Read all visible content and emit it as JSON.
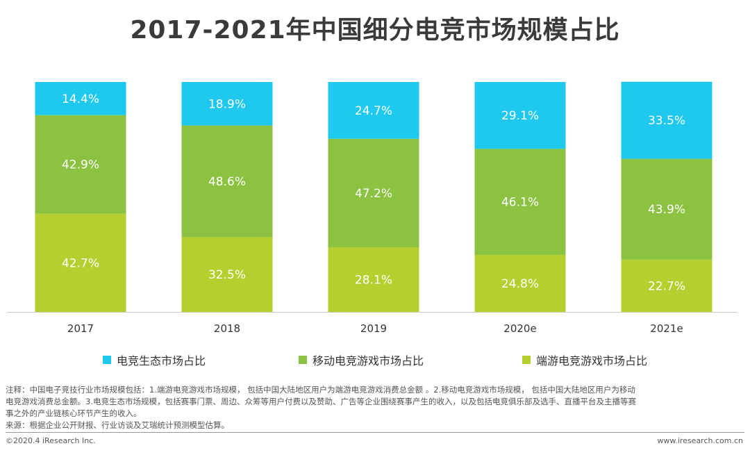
{
  "title": "2017-2021年中国细分电竞市场规模占比",
  "chart_data": {
    "type": "bar",
    "stacked": true,
    "categories": [
      "2017",
      "2018",
      "2019",
      "2020e",
      "2021e"
    ],
    "series": [
      {
        "name": "端游电竞游戏市场占比",
        "color": "#b5cf2f",
        "values": [
          42.7,
          32.5,
          28.1,
          24.8,
          22.7
        ],
        "labels": [
          "42.7%",
          "32.5%",
          "28.1%",
          "24.8%",
          "22.7%"
        ]
      },
      {
        "name": "移动电竞游戏市场占比",
        "color": "#8bc242",
        "values": [
          42.9,
          48.6,
          47.2,
          46.1,
          43.9
        ],
        "labels": [
          "42.9%",
          "48.6%",
          "47.2%",
          "46.1%",
          "43.9%"
        ]
      },
      {
        "name": "电竞生态市场占比",
        "color": "#1ec8ef",
        "values": [
          14.4,
          18.9,
          24.7,
          29.1,
          33.5
        ],
        "labels": [
          "14.4%",
          "18.9%",
          "24.7%",
          "29.1%",
          "33.5%"
        ]
      }
    ],
    "ylim": [
      0,
      100
    ],
    "grid": false,
    "legend_position": "bottom"
  },
  "legend": [
    {
      "label": "电竞生态市场占比",
      "color": "#1ec8ef"
    },
    {
      "label": "移动电竞游戏市场占比",
      "color": "#8bc242"
    },
    {
      "label": "端游电竞游戏市场占比",
      "color": "#b5cf2f"
    }
  ],
  "notes": {
    "line1": "注释：中国电子竞技行业市场规模包括：1.端游电竞游戏市场规模， 包括中国大陆地区用户为端游电竞游戏消费总金额 。2.移动电竞游戏市场规模， 包括中国大陆地区用户为移动",
    "line2": "电竞游戏消费总金额。3.电竞生态市场规模，包括赛事门票、周边、众筹等用户付费以及赞助、广告等企业围绕赛事产生的收入，以及包括电竞俱乐部及选手、直播平台及主播等赛",
    "line3": "事之外的产业链核心环节产生的收入。",
    "source": "来源：根据企业公开财报、行业访谈及艾瑞统计预测模型估算。"
  },
  "footer": {
    "copyright": "©2020.4 iResearch Inc.",
    "website": "www.iresearch.com.cn"
  }
}
